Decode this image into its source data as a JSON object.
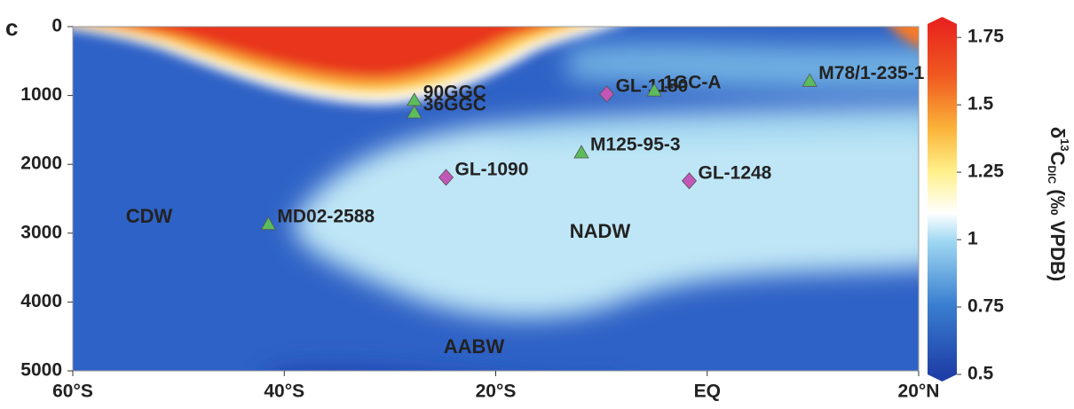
{
  "panel_label": "c",
  "chart_data": {
    "type": "section",
    "xlim": [
      -60,
      20
    ],
    "xticks": [
      {
        "value": -60,
        "label": "60°S"
      },
      {
        "value": -40,
        "label": "40°S"
      },
      {
        "value": -20,
        "label": "20°S"
      },
      {
        "value": 0,
        "label": "EQ"
      },
      {
        "value": 20,
        "label": "20°N"
      }
    ],
    "ylim": [
      0,
      5000
    ],
    "yticks": [
      0,
      1000,
      2000,
      3000,
      4000,
      5000
    ],
    "y_inverted": true,
    "annotations": [
      "CDW",
      "NADW",
      "AABW"
    ],
    "markers": {
      "triangle": "#5bbd5b",
      "diamond": "#c257b8"
    },
    "points": [
      {
        "label": "90GGC",
        "x": -27.7,
        "y": 1070,
        "marker": "triangle"
      },
      {
        "label": "36GGC",
        "x": -27.7,
        "y": 1250,
        "marker": "triangle"
      },
      {
        "label": "MD02-2588",
        "x": -41.5,
        "y": 2870,
        "marker": "triangle"
      },
      {
        "label": "GL-1090",
        "x": -24.7,
        "y": 2190,
        "marker": "diamond"
      },
      {
        "label": "M125-95-3",
        "x": -11.9,
        "y": 1830,
        "marker": "triangle"
      },
      {
        "label": "GL-1180",
        "x": -9.5,
        "y": 980,
        "marker": "diamond"
      },
      {
        "label": "1GC-A",
        "x": -5,
        "y": 930,
        "marker": "triangle"
      },
      {
        "label": "GL-1248",
        "x": -1.7,
        "y": 2240,
        "marker": "diamond"
      },
      {
        "label": "M78/1-235-1",
        "x": 9.7,
        "y": 790,
        "marker": "triangle"
      }
    ],
    "colorbar": {
      "lim": [
        0.5,
        1.8
      ],
      "ticks": [
        0.5,
        0.75,
        1,
        1.25,
        1.5,
        1.75
      ],
      "label": [
        "δ",
        "13",
        "C",
        "DIC",
        " (‰ VPDB)"
      ]
    }
  }
}
